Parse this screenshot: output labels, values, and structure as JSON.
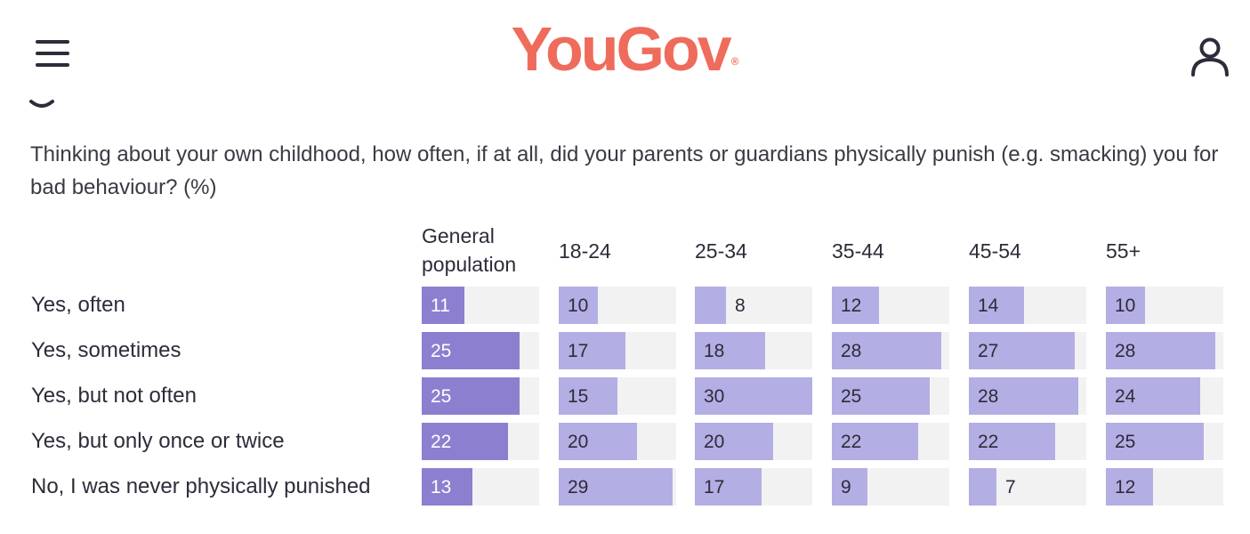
{
  "header": {
    "logo_text": "YouGov",
    "logo_mark": "®",
    "logo_color": "#ef6b5c",
    "menu_icon": "hamburger-menu-icon",
    "user_icon": "user-account-icon"
  },
  "question": "Thinking about your own childhood, how often, if at all, did your parents or guardians physically punish (e.g. smacking) you for bad behaviour? (%)",
  "colors": {
    "general_bar": "#8c7fd0",
    "group_bar": "#b3aee3",
    "track": "#f2f2f2",
    "label_on_bar": "#ffffff",
    "label_off_bar": "#2c2c3a"
  },
  "chart_data": {
    "type": "bar",
    "title": "",
    "columns": [
      "General population",
      "18-24",
      "25-34",
      "35-44",
      "45-54",
      "55+"
    ],
    "categories": [
      "Yes, often",
      "Yes, sometimes",
      "Yes, but not often",
      "Yes, but only once or twice",
      "No, I was never physically punished"
    ],
    "series": [
      {
        "name": "General population",
        "values": [
          11,
          25,
          25,
          22,
          13
        ]
      },
      {
        "name": "18-24",
        "values": [
          10,
          17,
          15,
          20,
          29
        ]
      },
      {
        "name": "25-34",
        "values": [
          8,
          18,
          30,
          20,
          17
        ]
      },
      {
        "name": "35-44",
        "values": [
          12,
          28,
          25,
          22,
          9
        ]
      },
      {
        "name": "45-54",
        "values": [
          14,
          27,
          28,
          22,
          7
        ]
      },
      {
        "name": "55+",
        "values": [
          10,
          28,
          24,
          25,
          12
        ]
      }
    ],
    "ylim": [
      0,
      30
    ],
    "unit": "%"
  }
}
